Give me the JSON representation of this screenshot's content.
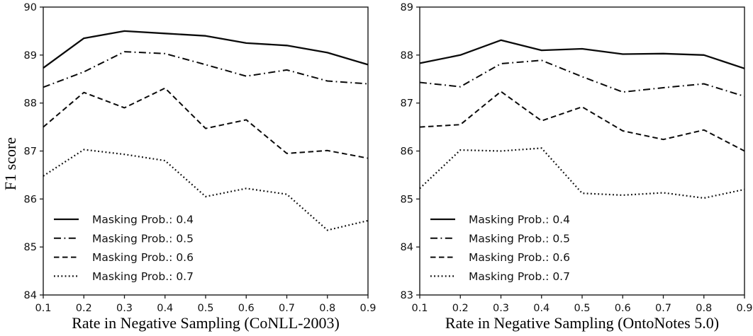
{
  "figure": {
    "background": "#ffffff",
    "line_color": "#0a0a0a",
    "axis_color": "#1a1a1a",
    "text_color": "#111111"
  },
  "chart_data": [
    {
      "type": "line",
      "panel": "left",
      "title": "",
      "xlabel": "Rate in Negative Sampling (CoNLL-2003)",
      "ylabel": "F1 score",
      "x": [
        0.1,
        0.2,
        0.3,
        0.4,
        0.5,
        0.6,
        0.7,
        0.8,
        0.9
      ],
      "xlim": [
        0.1,
        0.9
      ],
      "ylim": [
        84,
        90
      ],
      "xtick_labels": [
        "0.1",
        "0.2",
        "0.3",
        "0.4",
        "0.5",
        "0.6",
        "0.7",
        "0.8",
        "0.9"
      ],
      "ytick_labels": [
        "84",
        "85",
        "86",
        "87",
        "88",
        "89",
        "90"
      ],
      "yticks": [
        84,
        85,
        86,
        87,
        88,
        89,
        90
      ],
      "grid": false,
      "legend_position": "lower-left",
      "series": [
        {
          "name": "Masking Prob.: 0.4",
          "style": "solid",
          "values": [
            88.73,
            89.35,
            89.5,
            89.45,
            89.4,
            89.25,
            89.2,
            89.05,
            88.8
          ]
        },
        {
          "name": "Masking Prob.: 0.5",
          "style": "dashdot",
          "values": [
            88.33,
            88.65,
            89.07,
            89.03,
            88.8,
            88.56,
            88.69,
            88.46,
            88.4
          ]
        },
        {
          "name": "Masking Prob.: 0.6",
          "style": "dashed",
          "values": [
            87.5,
            88.22,
            87.9,
            88.31,
            87.47,
            87.65,
            86.95,
            87.01,
            86.85
          ]
        },
        {
          "name": "Masking Prob.: 0.7",
          "style": "dotted",
          "values": [
            86.48,
            87.03,
            86.93,
            86.8,
            86.05,
            86.22,
            86.1,
            85.35,
            85.55
          ]
        }
      ]
    },
    {
      "type": "line",
      "panel": "right",
      "title": "",
      "xlabel": "Rate in Negative Sampling (OntoNotes 5.0)",
      "ylabel": "",
      "x": [
        0.1,
        0.2,
        0.3,
        0.4,
        0.5,
        0.6,
        0.7,
        0.8,
        0.9
      ],
      "xlim": [
        0.1,
        0.9
      ],
      "ylim": [
        83,
        89
      ],
      "xtick_labels": [
        "0.1",
        "0.2",
        "0.3",
        "0.4",
        "0.5",
        "0.6",
        "0.7",
        "0.8",
        "0.9"
      ],
      "ytick_labels": [
        "83",
        "84",
        "85",
        "86",
        "87",
        "88",
        "89"
      ],
      "yticks": [
        83,
        84,
        85,
        86,
        87,
        88,
        89
      ],
      "grid": false,
      "legend_position": "lower-left",
      "series": [
        {
          "name": "Masking Prob.: 0.4",
          "style": "solid",
          "values": [
            87.83,
            88.0,
            88.31,
            88.1,
            88.13,
            88.02,
            88.03,
            88.0,
            87.72
          ]
        },
        {
          "name": "Masking Prob.: 0.5",
          "style": "dashdot",
          "values": [
            87.43,
            87.34,
            87.82,
            87.89,
            87.55,
            87.23,
            87.32,
            87.4,
            87.14
          ]
        },
        {
          "name": "Masking Prob.: 0.6",
          "style": "dashed",
          "values": [
            86.5,
            86.55,
            87.24,
            86.63,
            86.92,
            86.42,
            86.24,
            86.44,
            86.0
          ]
        },
        {
          "name": "Masking Prob.: 0.7",
          "style": "dotted",
          "values": [
            85.22,
            86.02,
            86.0,
            86.06,
            85.12,
            85.08,
            85.13,
            85.02,
            85.2
          ]
        }
      ]
    }
  ]
}
